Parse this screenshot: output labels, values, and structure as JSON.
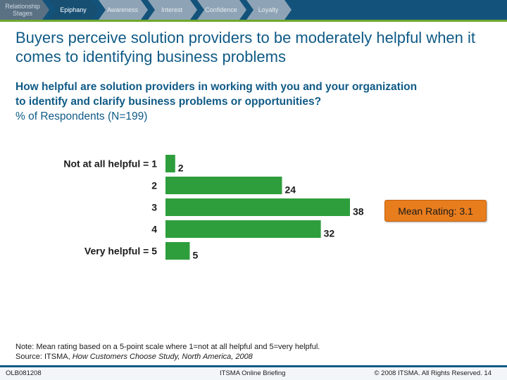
{
  "nav": {
    "stages": [
      "Relationship Stages",
      "Epiphany",
      "Awareness",
      "Interest",
      "Confidence",
      "Loyalty"
    ],
    "colors": {
      "bar": "#13527a",
      "chevron": "#8ea4b6",
      "first": "#5a7184",
      "active": "#174f73",
      "accent": "#6fa82d"
    }
  },
  "title": "Buyers perceive solution providers to be moderately helpful when it comes to identifying business problems",
  "question": {
    "line1": "How helpful are solution providers in working with you and your organization",
    "line2": "to identify and clarify business problems or opportunities?",
    "subtitle": "% of Respondents (N=199)"
  },
  "chart_data": {
    "type": "bar",
    "orientation": "horizontal",
    "categories": [
      "Not at all helpful = 1",
      "2",
      "3",
      "4",
      "Very helpful = 5"
    ],
    "values": [
      2,
      24,
      38,
      32,
      5
    ],
    "xlim": [
      0,
      38
    ],
    "color": "#2e9e3c",
    "title": "",
    "xlabel": "",
    "ylabel": ""
  },
  "mean_rating": "Mean Rating: 3.1",
  "note": {
    "line1": "Note: Mean rating based on a 5-point scale where 1=not at all helpful and 5=very helpful.",
    "source_prefix": "Source: ITSMA,",
    "source_title": "How Customers Choose Study, North America, 2008"
  },
  "footer": {
    "left": "OLB081208",
    "center": "ITSMA Online Briefing",
    "right": "© 2008 ITSMA. All Rights Reserved. 14"
  }
}
